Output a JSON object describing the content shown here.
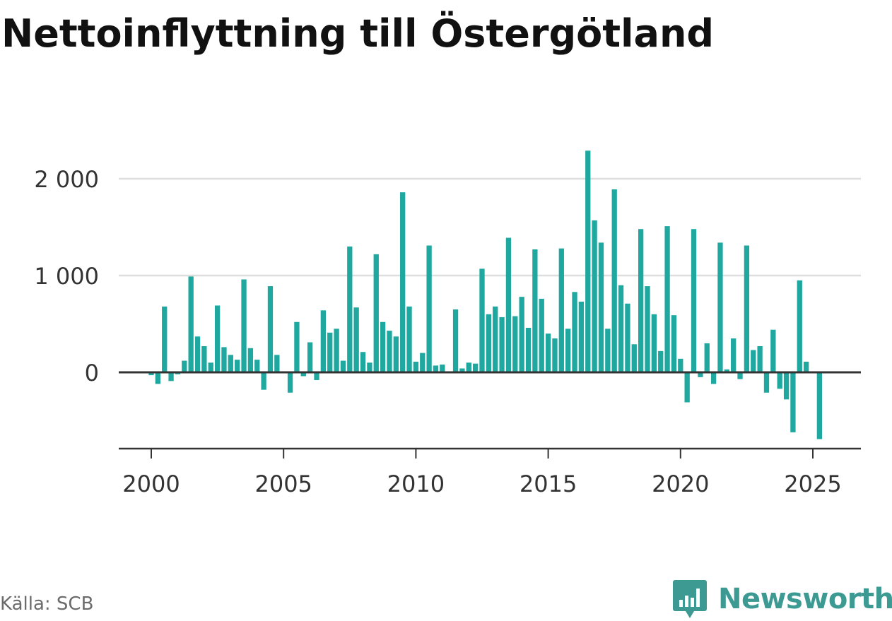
{
  "title": "Nettoinflyttning till Östergötland",
  "source": "Källa: SCB",
  "brand": {
    "name": "Newsworthy",
    "icon": "newsworthy-logo-icon"
  },
  "colors": {
    "bar": "#1fa8a0",
    "zero_line": "#333333",
    "grid": "#dddddd",
    "axis_text": "#333333",
    "brand": "#3d9a93"
  },
  "chart_data": {
    "type": "bar",
    "title": "Nettoinflyttning till Östergötland",
    "xlabel": "",
    "ylabel": "",
    "ylim": [
      -780,
      2300
    ],
    "xlim": [
      1999.6,
      2025.7
    ],
    "grid": true,
    "y_ticks": [
      0,
      1000,
      2000
    ],
    "y_tick_labels": [
      "0",
      "1 000",
      "2 000"
    ],
    "x_ticks": [
      2000,
      2005,
      2010,
      2015,
      2020,
      2025
    ],
    "x_tick_labels": [
      "2000",
      "2005",
      "2010",
      "2015",
      "2020",
      "2025"
    ],
    "x_start": 2000.0,
    "x_step": 0.25,
    "values": [
      -30,
      -120,
      680,
      -90,
      -20,
      120,
      990,
      370,
      270,
      100,
      690,
      260,
      180,
      130,
      960,
      250,
      130,
      -180,
      890,
      180,
      0,
      -210,
      520,
      -40,
      310,
      -80,
      640,
      410,
      450,
      120,
      1300,
      670,
      210,
      100,
      1220,
      520,
      430,
      370,
      1860,
      680,
      110,
      200,
      1310,
      70,
      80,
      0,
      650,
      40,
      100,
      90,
      1070,
      600,
      680,
      570,
      1390,
      580,
      780,
      460,
      1270,
      760,
      400,
      350,
      1280,
      450,
      830,
      730,
      2290,
      1570,
      1340,
      450,
      1890,
      900,
      710,
      290,
      1480,
      890,
      600,
      220,
      1510,
      590,
      140,
      -310,
      1480,
      -50,
      300,
      -120,
      1340,
      30,
      350,
      -70,
      1310,
      230,
      270,
      -210,
      440,
      -170,
      -280,
      -620,
      950,
      110,
      10,
      -690
    ]
  }
}
